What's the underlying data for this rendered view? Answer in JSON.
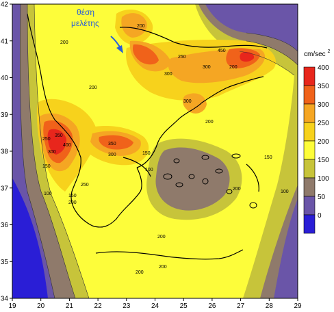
{
  "map": {
    "x_ticks": [
      "19",
      "20",
      "21",
      "22",
      "23",
      "24",
      "25",
      "26",
      "27",
      "28",
      "29"
    ],
    "y_ticks": [
      "42",
      "41",
      "40",
      "39",
      "38",
      "37",
      "36",
      "35",
      "34"
    ],
    "x_range": [
      19,
      29
    ],
    "y_range": [
      34,
      42
    ],
    "site_annotation": {
      "line1": "θέση",
      "line2": "μελέτης"
    },
    "site_marker_color": "#2a5fd6",
    "contour_labels": [
      "200",
      "250",
      "300",
      "350",
      "400",
      "150",
      "100",
      "200",
      "250",
      "300",
      "350",
      "200",
      "150",
      "100",
      "200",
      "200",
      "150",
      "200",
      "200",
      "300",
      "200",
      "150",
      "100",
      "250",
      "300",
      "200",
      "450",
      "300",
      "200"
    ]
  },
  "legend": {
    "unit_label": "cm/sec",
    "unit_exponent": "2",
    "levels": [
      {
        "value": "400",
        "color": "#e8261c"
      },
      {
        "value": "350",
        "color": "#f0621a"
      },
      {
        "value": "300",
        "color": "#f5a623"
      },
      {
        "value": "250",
        "color": "#f7d21c"
      },
      {
        "value": "200",
        "color": "#fdfd3a"
      },
      {
        "value": "150",
        "color": "#c7c43a"
      },
      {
        "value": "100",
        "color": "#8f7a6b"
      },
      {
        "value": "50",
        "color": "#6a55a8"
      },
      {
        "value": "0",
        "color": "#2a1ed6"
      }
    ]
  }
}
